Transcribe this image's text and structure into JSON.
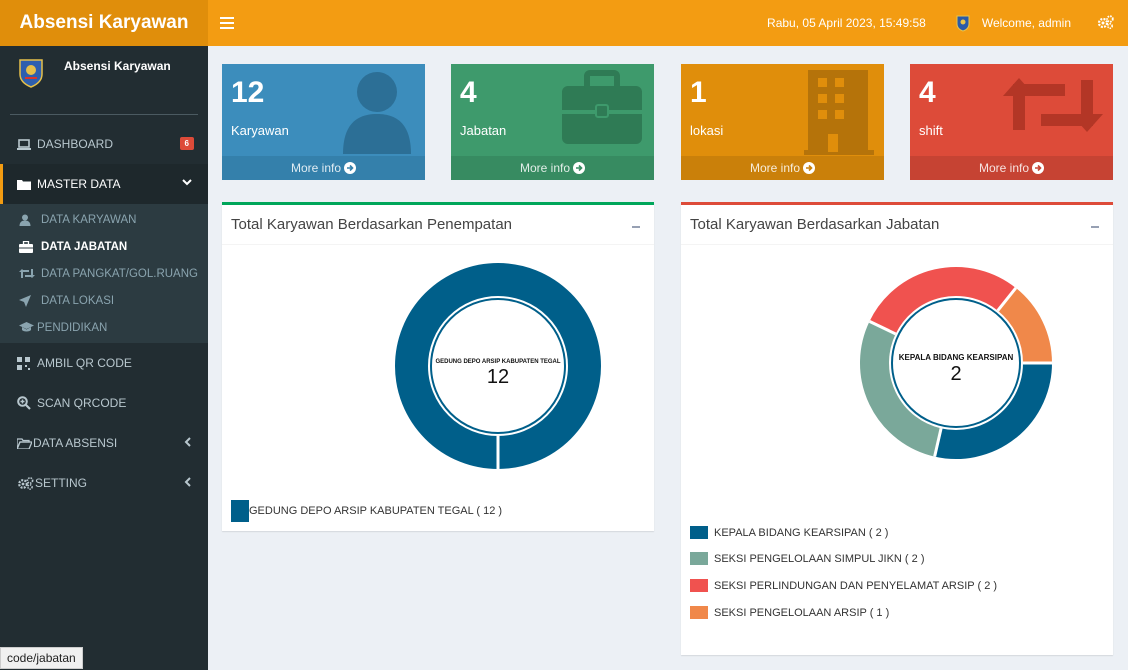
{
  "app": {
    "brand": "Absensi Karyawan",
    "datetime": "Rabu, 05 April 2023, 15:49:58",
    "welcome": "Welcome, admin"
  },
  "sidebar": {
    "user_name": "Absensi Karyawan",
    "dashboard": {
      "label": "DASHBOARD",
      "badge": "6"
    },
    "master_data": {
      "label": "MASTER DATA",
      "items": [
        {
          "label": "DATA KARYAWAN"
        },
        {
          "label": "DATA JABATAN"
        },
        {
          "label": "DATA PANGKAT/GOL.RUANG"
        },
        {
          "label": "DATA LOKASI"
        },
        {
          "label": "PENDIDIKAN"
        }
      ]
    },
    "qr": "AMBIL QR CODE",
    "scan": "SCAN QRCODE",
    "absensi": "DATA ABSENSI",
    "setting": "SETTING"
  },
  "boxes": [
    {
      "value": "12",
      "label": "Karyawan",
      "footer": "More info",
      "color": "#3c8dbc",
      "icon": "user-icon"
    },
    {
      "value": "4",
      "label": "Jabatan",
      "footer": "More info",
      "color": "#3e9a6c",
      "icon": "briefcase-icon"
    },
    {
      "value": "1",
      "label": "lokasi",
      "footer": "More info",
      "color": "#e08e0b",
      "icon": "building-icon"
    },
    {
      "value": "4",
      "label": "shift",
      "footer": "More info",
      "color": "#dd4b39",
      "icon": "retweet-icon"
    }
  ],
  "chart_data": [
    {
      "type": "pie",
      "title": "Total Karyawan Berdasarkan Penempatan",
      "center_label": "GEDUNG DEPO ARSIP KABUPATEN TEGAL",
      "center_value": "12",
      "categories": [
        "GEDUNG DEPO ARSIP KABUPATEN TEGAL"
      ],
      "values": [
        12
      ],
      "legend": [
        "GEDUNG DEPO ARSIP KABUPATEN TEGAL ( 12 )"
      ],
      "colors": [
        "#005f8a"
      ]
    },
    {
      "type": "pie",
      "title": "Total Karyawan Berdasarkan Jabatan",
      "center_label": "KEPALA BIDANG KEARSIPAN",
      "center_value": "2",
      "categories": [
        "KEPALA BIDANG KEARSIPAN",
        "SEKSI PENGELOLAAN SIMPUL JIKN",
        "SEKSI PERLINDUNGAN DAN PENYELAMAT ARSIP",
        "SEKSI PENGELOLAAN ARSIP"
      ],
      "values": [
        2,
        2,
        2,
        1
      ],
      "legend": [
        "KEPALA BIDANG KEARSIPAN ( 2 )",
        "SEKSI PENGELOLAAN SIMPUL JIKN ( 2 )",
        "SEKSI PERLINDUNGAN DAN PENYELAMAT ARSIP ( 2 )",
        "SEKSI PENGELOLAAN ARSIP ( 1 )"
      ],
      "colors": [
        "#005f8a",
        "#7aa89a",
        "#f0524f",
        "#f0884a"
      ]
    }
  ],
  "status_url": "code/jabatan"
}
